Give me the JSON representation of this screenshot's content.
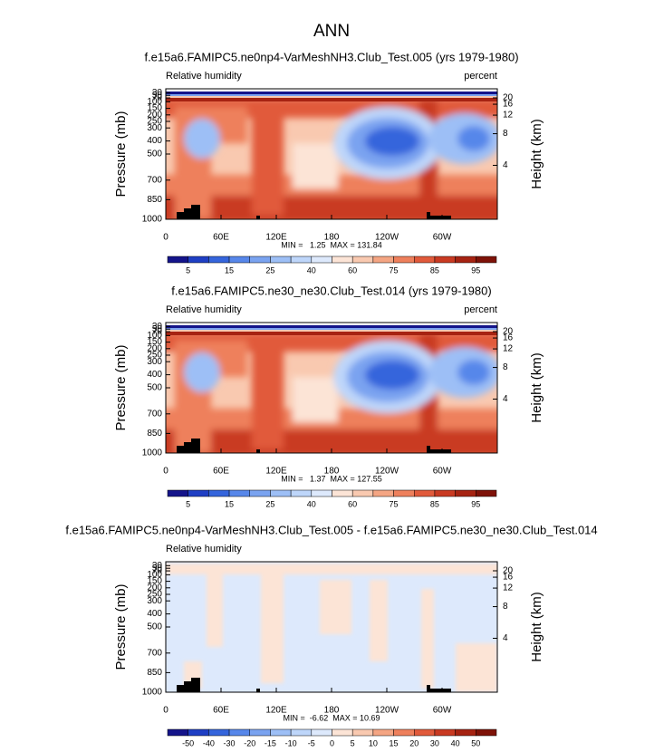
{
  "title": "ANN",
  "chart_data": [
    {
      "type": "contour",
      "title": "f.e15a6.FAMIPC5.ne0np4-VarMeshNH3.Club_Test.005 (yrs 1979-1980)",
      "left_label": "Relative humidity",
      "right_label": "percent",
      "stats": "MIN =   1.25  MAX = 131.84",
      "ylabel": "Pressure (mb)",
      "y2label": "Height (km)",
      "xlim": [
        0,
        360
      ],
      "xticks": [
        0,
        {
          "value": 60,
          "label": "60E"
        },
        {
          "value": 120,
          "label": "120E"
        },
        180,
        {
          "value": 240,
          "label": "120W"
        },
        {
          "value": 300,
          "label": "60W"
        }
      ],
      "ylim": [
        1000,
        0
      ],
      "yticks": [
        1000,
        850,
        700,
        500,
        400,
        300,
        250,
        200,
        150,
        100,
        70,
        50,
        30
      ],
      "y2ticks": [
        4,
        8,
        12,
        16,
        20
      ],
      "colorbar": {
        "colors": [
          "#14148a",
          "#1f3fc4",
          "#3565dc",
          "#5787ea",
          "#7aa3f0",
          "#9dbff6",
          "#bed6fa",
          "#dde9fc",
          "#fce4d6",
          "#f9c9b0",
          "#f4a583",
          "#ee805c",
          "#e15a3b",
          "#c93a22",
          "#a62312",
          "#7e1208"
        ],
        "labels": [
          5,
          15,
          25,
          40,
          60,
          75,
          85,
          95
        ]
      }
    },
    {
      "type": "contour",
      "title": "f.e15a6.FAMIPC5.ne30_ne30.Club_Test.014 (yrs 1979-1980)",
      "left_label": "Relative humidity",
      "right_label": "percent",
      "stats": "MIN =   1.37  MAX = 127.55",
      "ylabel": "Pressure (mb)",
      "y2label": "Height (km)",
      "xlim": [
        0,
        360
      ],
      "xticks": [
        0,
        {
          "value": 60,
          "label": "60E"
        },
        {
          "value": 120,
          "label": "120E"
        },
        180,
        {
          "value": 240,
          "label": "120W"
        },
        {
          "value": 300,
          "label": "60W"
        }
      ],
      "ylim": [
        1000,
        0
      ],
      "yticks": [
        1000,
        850,
        700,
        500,
        400,
        300,
        250,
        200,
        150,
        100,
        70,
        50,
        30
      ],
      "y2ticks": [
        4,
        8,
        12,
        16,
        20
      ],
      "colorbar": {
        "colors": [
          "#14148a",
          "#1f3fc4",
          "#3565dc",
          "#5787ea",
          "#7aa3f0",
          "#9dbff6",
          "#bed6fa",
          "#dde9fc",
          "#fce4d6",
          "#f9c9b0",
          "#f4a583",
          "#ee805c",
          "#e15a3b",
          "#c93a22",
          "#a62312",
          "#7e1208"
        ],
        "labels": [
          5,
          15,
          25,
          40,
          60,
          75,
          85,
          95
        ]
      }
    },
    {
      "type": "contour",
      "title": "f.e15a6.FAMIPC5.ne0np4-VarMeshNH3.Club_Test.005 - f.e15a6.FAMIPC5.ne30_ne30.Club_Test.014",
      "left_label": "Relative humidity",
      "stats": "MIN =  -6.62  MAX = 10.69",
      "ylabel": "Pressure (mb)",
      "y2label": "Height (km)",
      "xlim": [
        0,
        360
      ],
      "xticks": [
        0,
        {
          "value": 60,
          "label": "60E"
        },
        {
          "value": 120,
          "label": "120E"
        },
        180,
        {
          "value": 240,
          "label": "120W"
        },
        {
          "value": 300,
          "label": "60W"
        }
      ],
      "ylim": [
        1000,
        0
      ],
      "yticks": [
        1000,
        850,
        700,
        500,
        400,
        300,
        250,
        200,
        150,
        100,
        70,
        50,
        30
      ],
      "y2ticks": [
        4,
        8,
        12,
        16,
        20
      ],
      "colorbar": {
        "colors": [
          "#14148a",
          "#1f3fc4",
          "#3565dc",
          "#5787ea",
          "#7aa3f0",
          "#9dbff6",
          "#bed6fa",
          "#dde9fc",
          "#fce4d6",
          "#f9c9b0",
          "#f4a583",
          "#ee805c",
          "#e15a3b",
          "#c93a22",
          "#a62312",
          "#7e1208"
        ],
        "labels": [
          -50,
          -40,
          -30,
          -20,
          -15,
          -10,
          -5,
          0,
          5,
          10,
          15,
          20,
          30,
          40,
          50
        ]
      }
    }
  ]
}
